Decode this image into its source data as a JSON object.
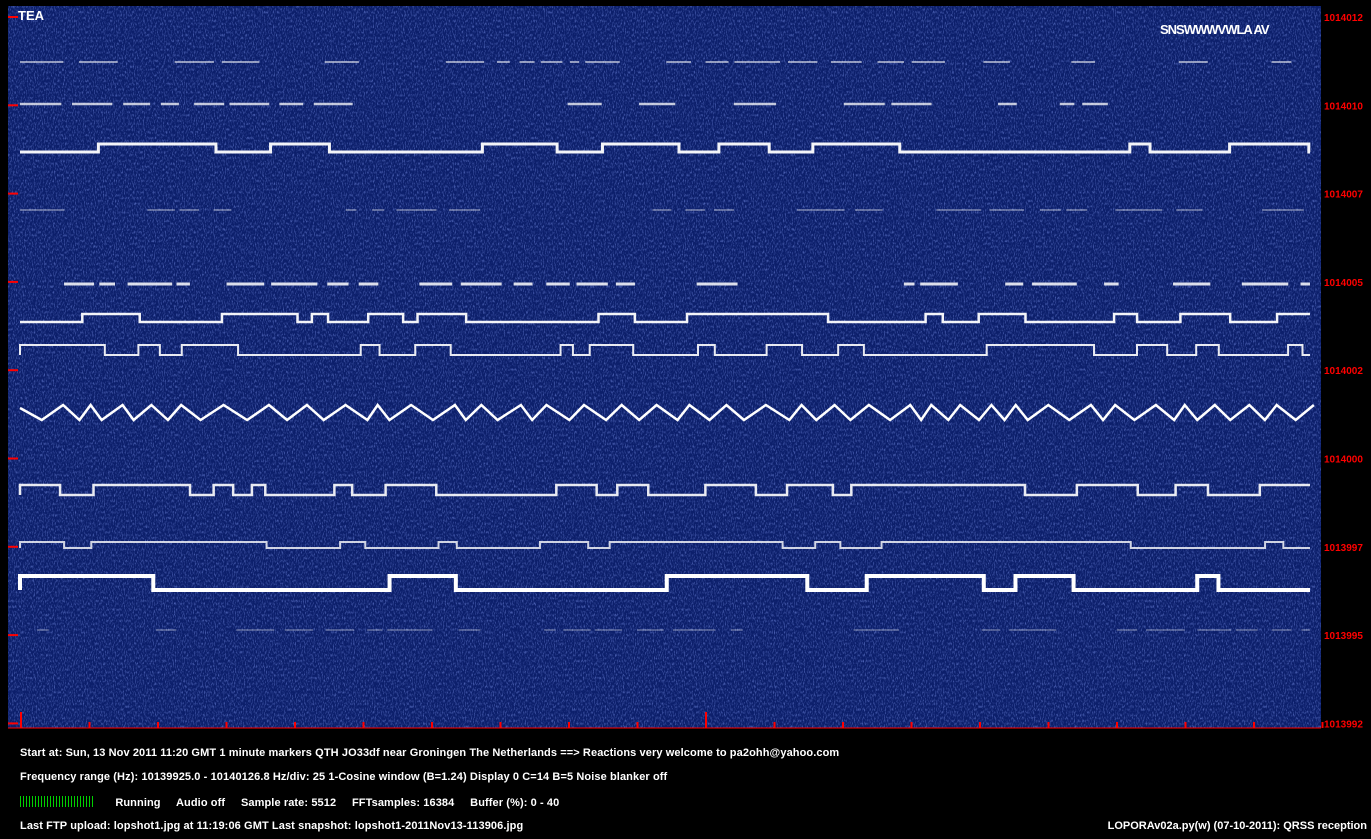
{
  "waterfall": {
    "background": "#0c1f6b",
    "signal_color": "#ffffff",
    "marker_color": "#ff0000",
    "freq_labels": [
      "1014012",
      "1014010",
      "1014007",
      "1014005",
      "1014002",
      "1014000",
      "1013997",
      "1013995",
      "1013992"
    ],
    "corner_label": "TEA",
    "top_right_text": "SNSWWWVWLA AV"
  },
  "status": {
    "line1": "Start at: Sun, 13 Nov 2011 11:20 GMT    1 minute markers    QTH JO33df near Groningen The Netherlands ==> Reactions very welcome to pa2ohh@yahoo.com",
    "line2": "Frequency range (Hz): 10139925.0 - 10140126.8    Hz/div: 25    1-Cosine window (B=1.24)    Display 0    C=14    B=5    Noise blanker off",
    "running": "Running",
    "audio": "Audio off",
    "sample_rate": "Sample rate: 5512",
    "fft": "FFTsamples: 16384",
    "buffer": "Buffer (%): 0 - 40",
    "line4": "Last FTP upload: lopshot1.jpg at 11:19:06 GMT    Last snapshot: lopshot1-2011Nov13-113906.jpg",
    "credit": "LOPORAv02a.py(w) (07-10-2011): QRSS reception",
    "meter_color": "#00d000"
  }
}
